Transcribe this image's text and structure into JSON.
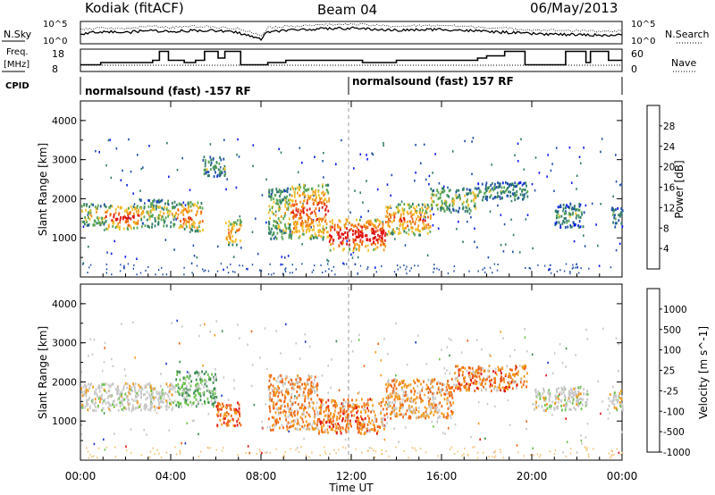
{
  "header": {
    "station": "Kodiak (fitACF)",
    "beam": "Beam 04",
    "date": "06/May/2013"
  },
  "strip_labels": {
    "nsky": "N.Sky",
    "freq_line1": "Freq.",
    "freq_line2": "[MHz]",
    "cpid": "CPID",
    "nsearch": "N.Search",
    "nave": "Nave"
  },
  "strip_ticks": {
    "noise_left_top": "10^5",
    "noise_left_bottom": "10^0",
    "noise_right_top": "10^5",
    "noise_right_bottom": "10^0",
    "freq_top": "18",
    "freq_bottom": "8",
    "nave_top": "60",
    "nave_bottom": "0"
  },
  "cpid_labels": {
    "first": "normalsound (fast) -157 RF",
    "second": "normalsound (fast) 157 RF"
  },
  "colors": {
    "axis": "#000000",
    "scatter_blue": "#1f3fd0",
    "scatter_green": "#3b8a55",
    "scatter_orange": "#f08a16",
    "scatter_red": "#e01010",
    "ground_gray": "#c8c8c8"
  },
  "chart_data": [
    {
      "type": "heatmap",
      "panel": "power",
      "ylabel": "Slant Range [km]",
      "xlim": [
        "00:00",
        "24:00"
      ],
      "ylim": [
        0,
        4500
      ],
      "y_ticks": [
        "1000",
        "2000",
        "3000",
        "4000"
      ],
      "colorbar": {
        "label": "Power [dB]",
        "tick_labels": [
          "4",
          "8",
          "12",
          "16",
          "20",
          "24",
          "28"
        ],
        "range": [
          0,
          32
        ],
        "colors": [
          "#0a1aee",
          "#1f4fa8",
          "#2e7b6a",
          "#59a653",
          "#f2c22a",
          "#f39a1c",
          "#f06414",
          "#e01010"
        ]
      },
      "patches": [
        {
          "t0": 0.0,
          "t1": 1.1,
          "r0": 1350,
          "r1": 1900,
          "level": 0.55
        },
        {
          "t0": 1.1,
          "t1": 2.6,
          "r0": 1250,
          "r1": 1850,
          "level": 0.85
        },
        {
          "t0": 2.6,
          "t1": 4.2,
          "r0": 1300,
          "r1": 2000,
          "level": 0.5
        },
        {
          "t0": 4.2,
          "t1": 5.4,
          "r0": 1200,
          "r1": 1950,
          "level": 0.75
        },
        {
          "t0": 5.4,
          "t1": 6.4,
          "r0": 2600,
          "r1": 3100,
          "level": 0.4
        },
        {
          "t0": 6.4,
          "t1": 7.1,
          "r0": 850,
          "r1": 1500,
          "level": 0.7
        },
        {
          "t0": 8.3,
          "t1": 9.3,
          "r0": 1000,
          "r1": 2300,
          "level": 0.5
        },
        {
          "t0": 9.3,
          "t1": 11.0,
          "r0": 1000,
          "r1": 2400,
          "level": 0.8
        },
        {
          "t0": 11.0,
          "t1": 13.5,
          "r0": 700,
          "r1": 1500,
          "level": 0.95
        },
        {
          "t0": 13.5,
          "t1": 15.5,
          "r0": 1100,
          "r1": 1900,
          "level": 0.7
        },
        {
          "t0": 15.5,
          "t1": 17.5,
          "r0": 1700,
          "r1": 2300,
          "level": 0.5
        },
        {
          "t0": 17.5,
          "t1": 19.8,
          "r0": 2000,
          "r1": 2450,
          "level": 0.35
        },
        {
          "t0": 21.0,
          "t1": 22.3,
          "r0": 1300,
          "r1": 1900,
          "level": 0.35
        },
        {
          "t0": 23.5,
          "t1": 24.0,
          "r0": 1300,
          "r1": 1800,
          "level": 0.3
        }
      ]
    },
    {
      "type": "heatmap",
      "panel": "velocity",
      "ylabel": "Slant Range [km]",
      "xlabel": "Time UT",
      "xlim": [
        "00:00",
        "24:00"
      ],
      "x_ticks": [
        "00:00",
        "04:00",
        "08:00",
        "12:00",
        "16:00",
        "20:00",
        "00:00"
      ],
      "ylim": [
        0,
        4500
      ],
      "y_ticks": [
        "1000",
        "2000",
        "3000",
        "4000"
      ],
      "colorbar": {
        "label": "Velocity [m s^-1]",
        "tick_labels": [
          "1000",
          "500",
          "100",
          "25",
          "-25",
          "-100",
          "-500",
          "-1000"
        ],
        "range": [
          -1000,
          1000
        ],
        "colors": [
          "#e01010",
          "#f06414",
          "#f39a1c",
          "#c8c8c8",
          "#c8c8c8",
          "#6bc24a",
          "#3b8a55",
          "#1f3fd0"
        ]
      },
      "patches": [
        {
          "t0": 0.0,
          "t1": 4.2,
          "r0": 1300,
          "r1": 2000,
          "level": 0.5
        },
        {
          "t0": 4.2,
          "t1": 6.0,
          "r0": 1400,
          "r1": 2300,
          "level": 0.7
        },
        {
          "t0": 6.0,
          "t1": 7.1,
          "r0": 900,
          "r1": 1500,
          "level": 0.15
        },
        {
          "t0": 8.3,
          "t1": 10.5,
          "r0": 800,
          "r1": 2200,
          "level": 0.3
        },
        {
          "t0": 10.5,
          "t1": 13.5,
          "r0": 700,
          "r1": 1600,
          "level": 0.25
        },
        {
          "t0": 13.5,
          "t1": 16.5,
          "r0": 1100,
          "r1": 2100,
          "level": 0.3
        },
        {
          "t0": 16.5,
          "t1": 19.8,
          "r0": 1800,
          "r1": 2450,
          "level": 0.25
        },
        {
          "t0": 20.0,
          "t1": 22.5,
          "r0": 1300,
          "r1": 1900,
          "level": 0.5
        },
        {
          "t0": 23.3,
          "t1": 24.0,
          "r0": 1300,
          "r1": 1800,
          "level": 0.5
        }
      ]
    }
  ],
  "freq_steps": [
    {
      "t": 0.0,
      "v": 11
    },
    {
      "t": 0.9,
      "v": 12
    },
    {
      "t": 3.2,
      "v": 13
    },
    {
      "t": 3.5,
      "v": 17
    },
    {
      "t": 3.9,
      "v": 13
    },
    {
      "t": 4.6,
      "v": 12
    },
    {
      "t": 5.1,
      "v": 13
    },
    {
      "t": 5.5,
      "v": 17
    },
    {
      "t": 6.1,
      "v": 14
    },
    {
      "t": 6.4,
      "v": 17
    },
    {
      "t": 7.1,
      "v": 11
    },
    {
      "t": 8.3,
      "v": 12
    },
    {
      "t": 9.1,
      "v": 13
    },
    {
      "t": 12.5,
      "v": 12
    },
    {
      "t": 14.0,
      "v": 13
    },
    {
      "t": 17.6,
      "v": 14
    },
    {
      "t": 18.0,
      "v": 15
    },
    {
      "t": 18.8,
      "v": 17
    },
    {
      "t": 19.7,
      "v": 11
    },
    {
      "t": 21.5,
      "v": 17
    },
    {
      "t": 22.4,
      "v": 12
    },
    {
      "t": 22.6,
      "v": 17
    },
    {
      "t": 23.4,
      "v": 13
    },
    {
      "t": 24.0,
      "v": 13
    }
  ],
  "noise_profile": [
    {
      "t": 0.0,
      "v": 0.45
    },
    {
      "t": 1.0,
      "v": 0.55
    },
    {
      "t": 2.0,
      "v": 0.5
    },
    {
      "t": 3.0,
      "v": 0.6
    },
    {
      "t": 4.0,
      "v": 0.55
    },
    {
      "t": 5.0,
      "v": 0.6
    },
    {
      "t": 6.0,
      "v": 0.58
    },
    {
      "t": 7.0,
      "v": 0.5
    },
    {
      "t": 8.0,
      "v": 0.2
    },
    {
      "t": 8.3,
      "v": 0.55
    },
    {
      "t": 10.0,
      "v": 0.65
    },
    {
      "t": 12.0,
      "v": 0.7
    },
    {
      "t": 14.0,
      "v": 0.6
    },
    {
      "t": 16.0,
      "v": 0.65
    },
    {
      "t": 18.0,
      "v": 0.55
    },
    {
      "t": 20.0,
      "v": 0.45
    },
    {
      "t": 22.0,
      "v": 0.4
    },
    {
      "t": 24.0,
      "v": 0.38
    }
  ]
}
